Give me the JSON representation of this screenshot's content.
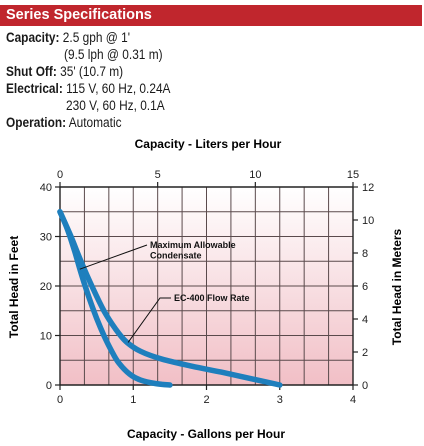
{
  "specs": {
    "header": "Series Specifications",
    "capacity": {
      "label": "Capacity:",
      "value": "2.5 gph @ 1'",
      "cont": "(9.5 lph @ 0.31 m)"
    },
    "shutoff": {
      "label": "Shut Off:",
      "value": "35' (10.7 m)"
    },
    "electrical": {
      "label": "Electrical:",
      "value": "115 V, 60 Hz, 0.24A",
      "cont": "230 V, 60 Hz, 0.1A"
    },
    "operation": {
      "label": "Operation:",
      "value": "Automatic"
    }
  },
  "colors": {
    "header_bg": "#c0262d",
    "plot_bg_top": "#ffffff",
    "plot_bg_bottom": "#f1bfc6",
    "grid": "#5a4a4c",
    "curve": "#1e7fbd"
  },
  "chart_data": {
    "type": "line",
    "top_axis_label": "Capacity - Liters per Hour",
    "bottom_axis_label": "Capacity - Gallons per Hour",
    "left_axis_label": "Total Head in Feet",
    "right_axis_label": "Total Head in Meters",
    "xlim_gph": [
      0,
      4
    ],
    "ylim_feet": [
      0,
      40
    ],
    "xlim_lph": [
      0,
      15
    ],
    "ylim_meters": [
      0,
      12
    ],
    "bottom_ticks": [
      "0",
      "1",
      "2",
      "3",
      "4"
    ],
    "top_ticks": [
      "0",
      "5",
      "10",
      "15"
    ],
    "left_ticks": [
      "0",
      "10",
      "20",
      "30",
      "40"
    ],
    "right_ticks": [
      "0",
      "2",
      "4",
      "6",
      "8",
      "10",
      "12"
    ],
    "grid": true,
    "annotations": [
      {
        "text_lines": [
          "Maximum Allowable",
          "Condensate"
        ],
        "target": "Maximum Allowable Condensate"
      },
      {
        "text_lines": [
          "EC-400 Flow Rate"
        ],
        "target": "EC-400 Flow Rate"
      }
    ],
    "series": [
      {
        "name": "Maximum Allowable Condensate",
        "x": [
          0,
          0.1,
          0.2,
          0.3,
          0.4,
          0.5,
          0.6,
          0.7,
          0.8,
          0.95,
          1.1,
          1.3,
          1.5
        ],
        "y": [
          35,
          31.5,
          27,
          22,
          17.5,
          13.5,
          10,
          7,
          4.5,
          2.2,
          1,
          0.3,
          0
        ]
      },
      {
        "name": "EC-400 Flow Rate",
        "x": [
          0,
          0.15,
          0.3,
          0.45,
          0.6,
          0.75,
          0.9,
          1.1,
          1.4,
          1.8,
          2.2,
          2.6,
          3.0
        ],
        "y": [
          35,
          30,
          24.5,
          19.5,
          15,
          11.5,
          8.8,
          6.8,
          5.2,
          3.8,
          2.6,
          1.3,
          0
        ]
      }
    ]
  }
}
